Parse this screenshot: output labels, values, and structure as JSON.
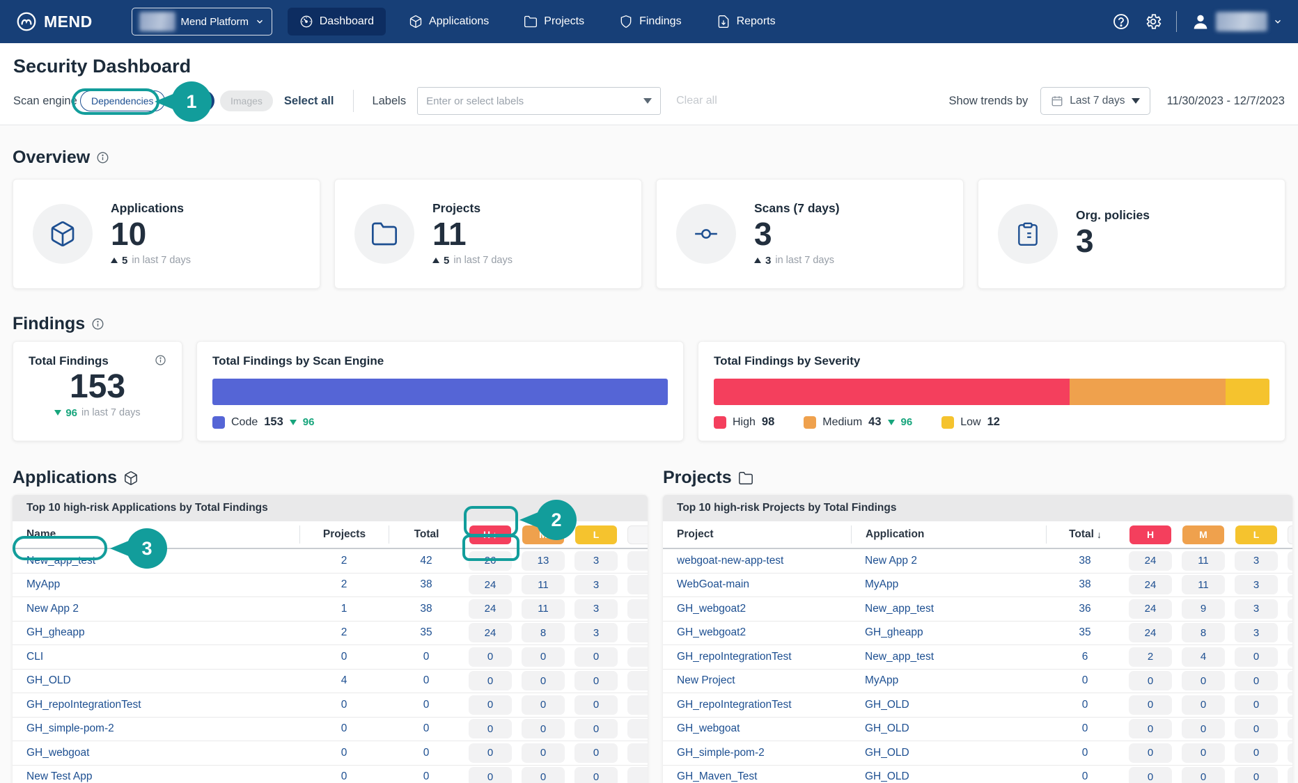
{
  "navbar": {
    "brand": "MEND",
    "org_selector": {
      "label": "Mend Platform..."
    },
    "tabs": [
      {
        "label": "Dashboard",
        "icon": "gauge-icon",
        "active": true
      },
      {
        "label": "Applications",
        "icon": "cube-icon",
        "active": false
      },
      {
        "label": "Projects",
        "icon": "folder-icon",
        "active": false
      },
      {
        "label": "Findings",
        "icon": "shield-icon",
        "active": false
      },
      {
        "label": "Reports",
        "icon": "report-icon",
        "active": false
      }
    ],
    "right_icons": [
      "help-icon",
      "gear-icon",
      "user-icon",
      "chevron-down-icon"
    ]
  },
  "page": {
    "title": "Security Dashboard"
  },
  "filters": {
    "scan_engine_label": "Scan engine",
    "engines": [
      {
        "label": "Dependencies",
        "state": "outlined"
      },
      {
        "label": "Code",
        "state": "selected"
      },
      {
        "label": "Images",
        "state": "disabled"
      }
    ],
    "select_all": "Select all",
    "labels_label": "Labels",
    "labels_placeholder": "Enter or select labels",
    "clear_all": "Clear all",
    "show_trends_by": "Show trends by",
    "date_preset": "Last 7 days",
    "date_range": "11/30/2023 - 12/7/2023"
  },
  "overview": {
    "heading": "Overview",
    "cards": [
      {
        "label": "Applications",
        "value": "10",
        "icon": "cube-icon",
        "trend_dir": "up",
        "trend_value": "5",
        "trend_suffix": "in last 7 days"
      },
      {
        "label": "Projects",
        "value": "11",
        "icon": "folder-icon",
        "trend_dir": "up",
        "trend_value": "5",
        "trend_suffix": "in last 7 days"
      },
      {
        "label": "Scans (7 days)",
        "value": "3",
        "icon": "commit-icon",
        "trend_dir": "up",
        "trend_value": "3",
        "trend_suffix": "in last 7 days"
      },
      {
        "label": "Org. policies",
        "value": "3",
        "icon": "clipboard-icon",
        "trend_dir": null,
        "trend_value": null,
        "trend_suffix": null
      }
    ]
  },
  "findings": {
    "heading": "Findings",
    "total_card": {
      "title": "Total Findings",
      "value": "153",
      "trend_dir": "down",
      "trend_value": "96",
      "trend_suffix": "in last 7 days"
    },
    "engine_card": {
      "title": "Total Findings by Scan Engine",
      "bar_color": "#5565d6",
      "legend": {
        "label": "Code",
        "value": "153",
        "trend_dir": "down",
        "trend_value": "96"
      }
    },
    "severity_card": {
      "title": "Total Findings by Severity",
      "segments": [
        {
          "label": "High",
          "value": 98,
          "color": "#f43f5d",
          "trend_value": null
        },
        {
          "label": "Medium",
          "value": 43,
          "color": "#efa14d",
          "trend_value": "96"
        },
        {
          "label": "Low",
          "value": 12,
          "color": "#f5c32e",
          "trend_value": null
        }
      ]
    }
  },
  "applications_section": {
    "heading": "Applications",
    "heading_icon": "cube-icon",
    "table_title": "Top 10 high-risk Applications by Total Findings",
    "columns": {
      "name": "Name",
      "projects": "Projects",
      "total": "Total",
      "h": "H",
      "m": "M",
      "l": "L"
    },
    "sorted_by": "h",
    "rows": [
      {
        "name": "New_app_test",
        "projects": "2",
        "total": "42",
        "h": "26",
        "m": "13",
        "l": "3"
      },
      {
        "name": "MyApp",
        "projects": "2",
        "total": "38",
        "h": "24",
        "m": "11",
        "l": "3"
      },
      {
        "name": "New App 2",
        "projects": "1",
        "total": "38",
        "h": "24",
        "m": "11",
        "l": "3"
      },
      {
        "name": "GH_gheapp",
        "projects": "2",
        "total": "35",
        "h": "24",
        "m": "8",
        "l": "3"
      },
      {
        "name": "CLI",
        "projects": "0",
        "total": "0",
        "h": "0",
        "m": "0",
        "l": "0"
      },
      {
        "name": "GH_OLD",
        "projects": "4",
        "total": "0",
        "h": "0",
        "m": "0",
        "l": "0"
      },
      {
        "name": "GH_repoIntegrationTest",
        "projects": "0",
        "total": "0",
        "h": "0",
        "m": "0",
        "l": "0"
      },
      {
        "name": "GH_simple-pom-2",
        "projects": "0",
        "total": "0",
        "h": "0",
        "m": "0",
        "l": "0"
      },
      {
        "name": "GH_webgoat",
        "projects": "0",
        "total": "0",
        "h": "0",
        "m": "0",
        "l": "0"
      },
      {
        "name": "New Test App",
        "projects": "0",
        "total": "0",
        "h": "0",
        "m": "0",
        "l": "0"
      }
    ]
  },
  "projects_section": {
    "heading": "Projects",
    "heading_icon": "folder-icon",
    "table_title": "Top 10 high-risk Projects by Total Findings",
    "columns": {
      "project": "Project",
      "application": "Application",
      "total": "Total",
      "h": "H",
      "m": "M",
      "l": "L"
    },
    "sorted_by": "total",
    "rows": [
      {
        "project": "webgoat-new-app-test",
        "application": "New App 2",
        "total": "38",
        "h": "24",
        "m": "11",
        "l": "3"
      },
      {
        "project": "WebGoat-main",
        "application": "MyApp",
        "total": "38",
        "h": "24",
        "m": "11",
        "l": "3"
      },
      {
        "project": "GH_webgoat2",
        "application": "New_app_test",
        "total": "36",
        "h": "24",
        "m": "9",
        "l": "3"
      },
      {
        "project": "GH_webgoat2",
        "application": "GH_gheapp",
        "total": "35",
        "h": "24",
        "m": "8",
        "l": "3"
      },
      {
        "project": "GH_repoIntegrationTest",
        "application": "New_app_test",
        "total": "6",
        "h": "2",
        "m": "4",
        "l": "0"
      },
      {
        "project": "New Project",
        "application": "MyApp",
        "total": "0",
        "h": "0",
        "m": "0",
        "l": "0"
      },
      {
        "project": "GH_repoIntegrationTest",
        "application": "GH_OLD",
        "total": "0",
        "h": "0",
        "m": "0",
        "l": "0"
      },
      {
        "project": "GH_webgoat",
        "application": "GH_OLD",
        "total": "0",
        "h": "0",
        "m": "0",
        "l": "0"
      },
      {
        "project": "GH_simple-pom-2",
        "application": "GH_OLD",
        "total": "0",
        "h": "0",
        "m": "0",
        "l": "0"
      },
      {
        "project": "GH_Maven_Test",
        "application": "GH_OLD",
        "total": "0",
        "h": "0",
        "m": "0",
        "l": "0"
      }
    ]
  },
  "annotations": {
    "color": "#129d9b",
    "markers": [
      {
        "number": "1",
        "target": "dependencies-pill"
      },
      {
        "number": "2",
        "target": "high-severity-column"
      },
      {
        "number": "3",
        "target": "new-app-test-row"
      }
    ]
  }
}
